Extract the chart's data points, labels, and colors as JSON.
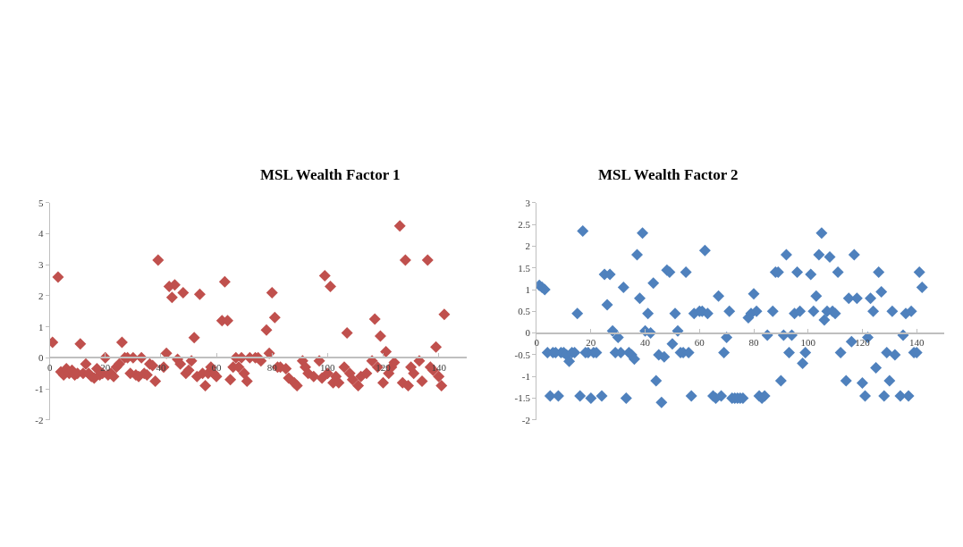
{
  "chart_data": [
    {
      "type": "scatter",
      "title": "MSL Wealth Factor 1",
      "marker": "diamond",
      "xlim": [
        0,
        150
      ],
      "xticks": [
        0,
        20,
        40,
        60,
        80,
        100,
        120,
        140
      ],
      "ylim": [
        -2,
        5
      ],
      "yticks": [
        -2,
        -1,
        0,
        1,
        2,
        3,
        4,
        5
      ],
      "series": [
        {
          "color": "#c0504d",
          "x": [
            1,
            3,
            4,
            5,
            6,
            7,
            8,
            9,
            10,
            11,
            12,
            13,
            14,
            15,
            16,
            17,
            18,
            19,
            20,
            21,
            22,
            23,
            24,
            25,
            26,
            27,
            28,
            29,
            30,
            31,
            32,
            33,
            34,
            35,
            36,
            37,
            38,
            39,
            41,
            42,
            43,
            44,
            45,
            46,
            47,
            48,
            49,
            50,
            51,
            52,
            53,
            54,
            55,
            56,
            57,
            58,
            59,
            60,
            62,
            63,
            64,
            65,
            66,
            67,
            68,
            69,
            70,
            71,
            72,
            74,
            75,
            76,
            78,
            79,
            80,
            81,
            82,
            83,
            85,
            86,
            88,
            89,
            91,
            92,
            93,
            95,
            97,
            98,
            99,
            100,
            101,
            102,
            103,
            104,
            106,
            107,
            108,
            109,
            111,
            112,
            114,
            116,
            117,
            118,
            119,
            120,
            121,
            122,
            123,
            124,
            126,
            127,
            128,
            129,
            130,
            131,
            133,
            134,
            136,
            137,
            138,
            139,
            140,
            141,
            142
          ],
          "values": [
            0.5,
            2.6,
            -0.45,
            -0.55,
            -0.35,
            -0.5,
            -0.4,
            -0.55,
            -0.5,
            0.45,
            -0.5,
            -0.2,
            -0.5,
            -0.6,
            -0.65,
            -0.35,
            -0.55,
            -0.5,
            0.0,
            -0.55,
            -0.5,
            -0.6,
            -0.3,
            -0.2,
            0.5,
            0.0,
            0.0,
            -0.5,
            0.0,
            -0.55,
            -0.6,
            0.0,
            -0.5,
            -0.55,
            -0.2,
            -0.25,
            -0.75,
            3.15,
            -0.3,
            0.15,
            2.3,
            1.95,
            2.35,
            -0.05,
            -0.2,
            2.1,
            -0.5,
            -0.4,
            -0.1,
            0.65,
            -0.6,
            2.05,
            -0.5,
            -0.9,
            -0.5,
            -0.3,
            -0.5,
            -0.6,
            1.2,
            2.45,
            1.2,
            -0.7,
            -0.3,
            0.0,
            -0.3,
            0.0,
            -0.5,
            -0.75,
            0.0,
            0.0,
            0.0,
            -0.1,
            0.9,
            0.15,
            2.1,
            1.3,
            -0.3,
            -0.3,
            -0.35,
            -0.65,
            -0.8,
            -0.9,
            -0.1,
            -0.3,
            -0.5,
            -0.6,
            -0.1,
            -0.65,
            2.65,
            -0.5,
            2.3,
            -0.8,
            -0.6,
            -0.8,
            -0.3,
            0.8,
            -0.5,
            -0.7,
            -0.9,
            -0.6,
            -0.5,
            -0.1,
            1.25,
            -0.3,
            0.7,
            -0.8,
            0.2,
            -0.5,
            -0.3,
            -0.15,
            4.25,
            -0.8,
            3.15,
            -0.9,
            -0.3,
            -0.5,
            -0.1,
            -0.75,
            3.15,
            -0.3,
            -0.4,
            0.35,
            -0.6,
            -0.9,
            1.4
          ]
        }
      ]
    },
    {
      "type": "scatter",
      "title": "MSL Wealth Factor 2",
      "marker": "diamond",
      "xlim": [
        0,
        150
      ],
      "xticks": [
        0,
        20,
        40,
        60,
        80,
        100,
        120,
        140
      ],
      "ylim": [
        -2,
        3
      ],
      "yticks": [
        -2,
        -1.5,
        -1,
        -0.5,
        0,
        0.5,
        1,
        1.5,
        2,
        2.5,
        3
      ],
      "series": [
        {
          "color": "#4f81bd",
          "x": [
            1,
            2,
            3,
            4,
            5,
            6,
            7,
            8,
            9,
            10,
            11,
            12,
            13,
            14,
            15,
            16,
            17,
            18,
            19,
            20,
            21,
            22,
            24,
            25,
            26,
            27,
            28,
            29,
            30,
            31,
            32,
            33,
            34,
            35,
            36,
            37,
            38,
            39,
            40,
            41,
            42,
            43,
            44,
            45,
            46,
            47,
            48,
            49,
            50,
            51,
            52,
            53,
            54,
            55,
            56,
            57,
            58,
            60,
            61,
            62,
            63,
            65,
            66,
            67,
            68,
            69,
            70,
            71,
            72,
            73,
            74,
            75,
            76,
            78,
            79,
            80,
            81,
            82,
            83,
            84,
            85,
            87,
            88,
            89,
            90,
            91,
            92,
            93,
            94,
            95,
            96,
            97,
            98,
            99,
            101,
            102,
            103,
            104,
            105,
            106,
            107,
            108,
            109,
            110,
            111,
            112,
            114,
            115,
            116,
            117,
            118,
            120,
            121,
            122,
            123,
            124,
            125,
            126,
            127,
            128,
            129,
            130,
            131,
            132,
            134,
            135,
            136,
            137,
            138,
            139,
            140,
            141,
            142
          ],
          "values": [
            1.1,
            1.05,
            1.0,
            -0.45,
            -1.45,
            -0.45,
            -0.45,
            -1.45,
            -0.45,
            -0.45,
            -0.5,
            -0.65,
            -0.45,
            -0.45,
            0.45,
            -1.45,
            2.35,
            -0.45,
            -0.45,
            -1.5,
            -0.45,
            -0.45,
            -1.45,
            1.35,
            0.65,
            1.35,
            0.05,
            -0.45,
            -0.1,
            -0.45,
            1.05,
            -1.5,
            -0.45,
            -0.5,
            -0.6,
            1.8,
            0.8,
            2.3,
            0.05,
            0.45,
            0.0,
            1.15,
            -1.1,
            -0.5,
            -1.6,
            -0.55,
            1.45,
            1.4,
            -0.25,
            0.45,
            0.05,
            -0.45,
            -0.45,
            1.4,
            -0.45,
            -1.45,
            0.45,
            0.5,
            0.5,
            1.9,
            0.45,
            -1.45,
            -1.5,
            0.85,
            -1.45,
            -0.45,
            -0.1,
            0.5,
            -1.5,
            -1.5,
            -1.5,
            -1.5,
            -1.5,
            0.35,
            0.45,
            0.9,
            0.5,
            -1.45,
            -1.5,
            -1.45,
            -0.05,
            0.5,
            1.4,
            1.4,
            -1.1,
            -0.05,
            1.8,
            -0.45,
            -0.05,
            0.45,
            1.4,
            0.5,
            -0.7,
            -0.45,
            1.35,
            0.5,
            0.85,
            1.8,
            2.3,
            0.3,
            0.5,
            1.75,
            0.5,
            0.45,
            1.4,
            -0.45,
            -1.1,
            0.8,
            -0.2,
            1.8,
            0.8,
            -1.15,
            -1.45,
            -0.1,
            0.8,
            0.5,
            -0.8,
            1.4,
            0.95,
            -1.45,
            -0.45,
            -1.1,
            0.5,
            -0.5,
            -1.45,
            -0.05,
            0.45,
            -1.45,
            0.5,
            -0.45,
            -0.45,
            1.4,
            1.05
          ]
        }
      ]
    }
  ]
}
